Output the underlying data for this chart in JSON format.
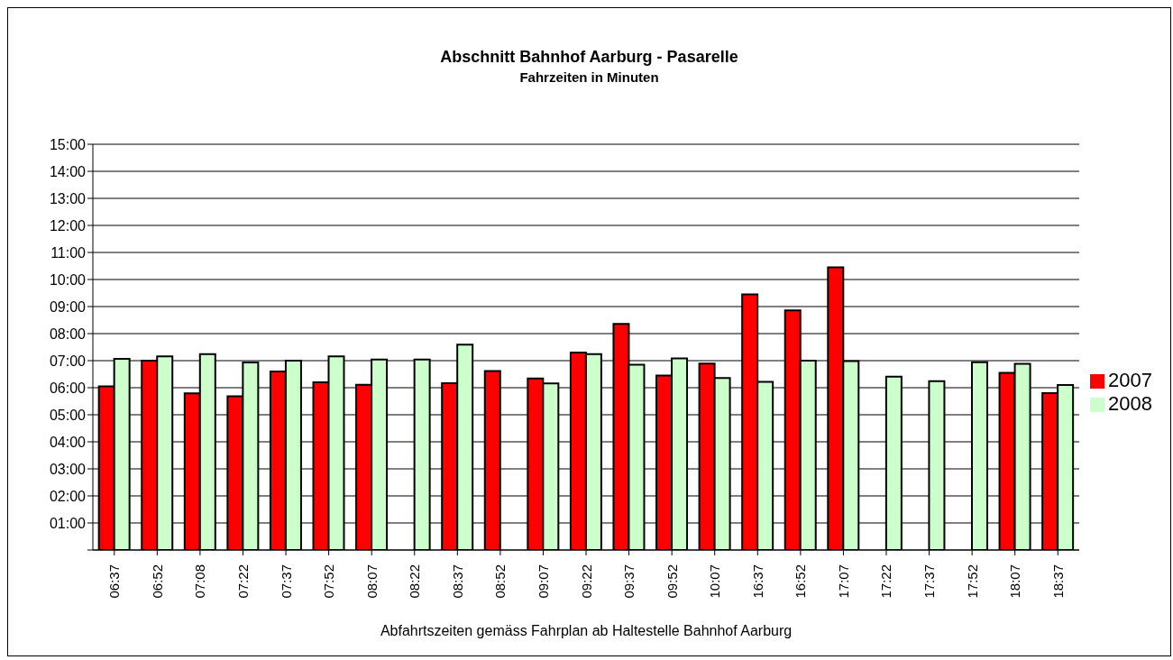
{
  "chart_data": {
    "type": "bar",
    "title": "Abschnitt Bahnhof Aarburg - Pasarelle",
    "subtitle": "Fahrzeiten in Minuten",
    "xlabel": "Abfahrtszeiten gemäss Fahrplan ab Haltestelle Bahnhof Aarburg",
    "categories": [
      "06:37",
      "06:52",
      "07:08",
      "07:22",
      "07:37",
      "07:52",
      "08:07",
      "08:22",
      "08:37",
      "08:52",
      "09:07",
      "09:22",
      "09:37",
      "09:52",
      "10:07",
      "16:37",
      "16:52",
      "17:07",
      "17:22",
      "17:37",
      "17:52",
      "18:07",
      "18:37"
    ],
    "series": [
      {
        "name": "2007",
        "color": "#ff0000",
        "values": [
          6.05,
          7.0,
          5.79,
          5.68,
          6.6,
          6.2,
          6.11,
          null,
          6.17,
          6.62,
          6.34,
          7.3,
          8.36,
          6.45,
          6.89,
          9.45,
          8.86,
          10.45,
          null,
          null,
          null,
          6.55,
          5.8
        ]
      },
      {
        "name": "2008",
        "color": "#ccffcc",
        "values": [
          7.07,
          7.16,
          7.24,
          6.93,
          7.0,
          7.16,
          7.04,
          7.04,
          7.59,
          null,
          6.16,
          7.24,
          6.85,
          7.08,
          6.36,
          6.22,
          7.0,
          6.98,
          6.41,
          6.24,
          6.94,
          6.88,
          6.1
        ]
      }
    ],
    "ylim": [
      0,
      15
    ],
    "yticks": [
      {
        "value": 0,
        "label": null
      },
      {
        "value": 1,
        "label": "01:00"
      },
      {
        "value": 2,
        "label": "02:00"
      },
      {
        "value": 3,
        "label": "03:00"
      },
      {
        "value": 4,
        "label": "04:00"
      },
      {
        "value": 5,
        "label": "05:00"
      },
      {
        "value": 6,
        "label": "06:00"
      },
      {
        "value": 7,
        "label": "07:00"
      },
      {
        "value": 8,
        "label": "08:00"
      },
      {
        "value": 9,
        "label": "09:00"
      },
      {
        "value": 10,
        "label": "10:00"
      },
      {
        "value": 11,
        "label": "11:00"
      },
      {
        "value": 12,
        "label": "12:00"
      },
      {
        "value": 13,
        "label": "13:00"
      },
      {
        "value": 14,
        "label": "14:00"
      },
      {
        "value": 15,
        "label": "15:00"
      }
    ],
    "grid": "y",
    "legend": "right"
  }
}
